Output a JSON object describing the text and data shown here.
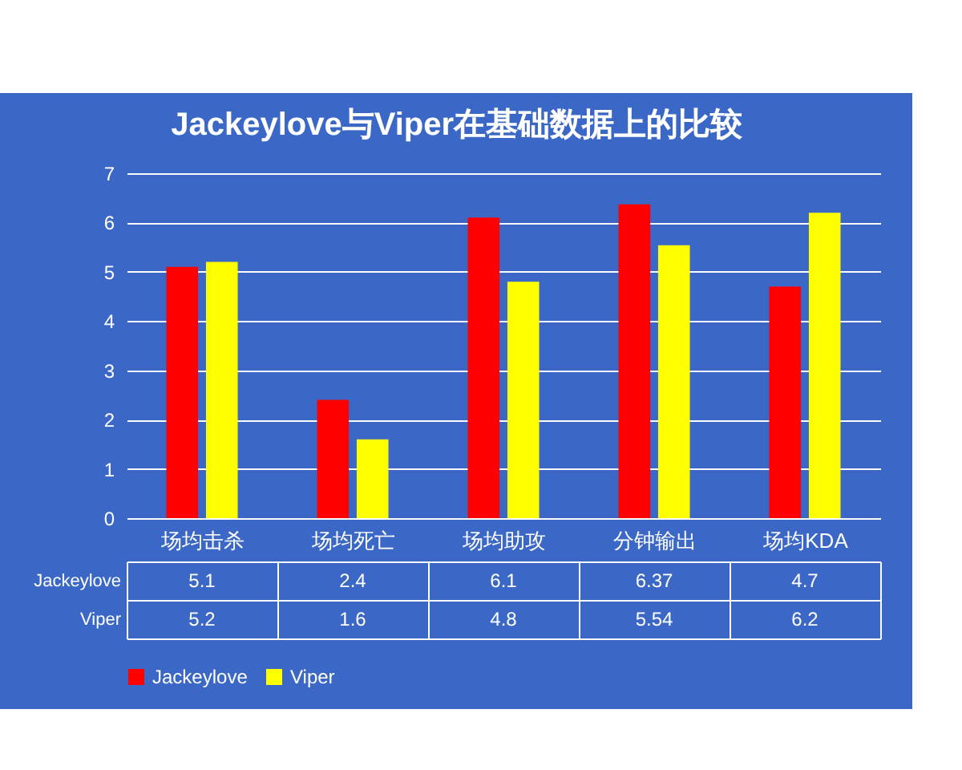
{
  "chart_data": {
    "type": "bar",
    "title": "Jackeylove与Viper在基础数据上的比较",
    "categories": [
      "场均击杀",
      "场均死亡",
      "场均助攻",
      "分钟输出",
      "场均KDA"
    ],
    "series": [
      {
        "name": "Jackeylove",
        "color": "#ff0000",
        "values": [
          5.1,
          2.4,
          6.1,
          6.37,
          4.7
        ]
      },
      {
        "name": "Viper",
        "color": "#ffff00",
        "values": [
          5.2,
          1.6,
          4.8,
          5.54,
          6.2
        ]
      }
    ],
    "ylim": [
      0,
      7
    ],
    "yticks": [
      0,
      1,
      2,
      3,
      4,
      5,
      6,
      7
    ],
    "grid": "y",
    "legend": "bottom",
    "data_labels": true
  }
}
